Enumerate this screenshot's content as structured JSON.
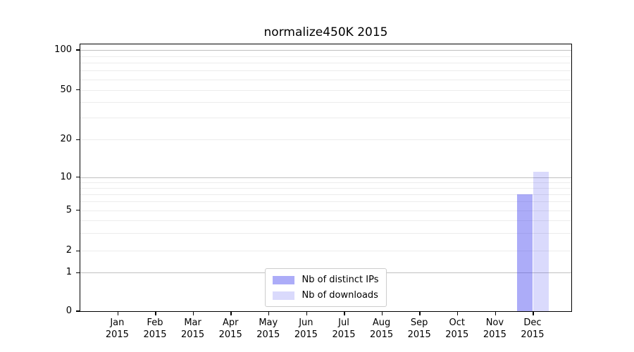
{
  "figure": {
    "title": "normalize450K 2015"
  },
  "chart_data": {
    "type": "bar",
    "title": "normalize450K 2015",
    "x_categories": [
      {
        "label": "Jan",
        "year": "2015"
      },
      {
        "label": "Feb",
        "year": "2015"
      },
      {
        "label": "Mar",
        "year": "2015"
      },
      {
        "label": "Apr",
        "year": "2015"
      },
      {
        "label": "May",
        "year": "2015"
      },
      {
        "label": "Jun",
        "year": "2015"
      },
      {
        "label": "Jul",
        "year": "2015"
      },
      {
        "label": "Aug",
        "year": "2015"
      },
      {
        "label": "Sep",
        "year": "2015"
      },
      {
        "label": "Oct",
        "year": "2015"
      },
      {
        "label": "Nov",
        "year": "2015"
      },
      {
        "label": "Dec",
        "year": "2015"
      }
    ],
    "series": [
      {
        "name": "Nb of distinct IPs",
        "color": "rgba(70,70,240,0.45)",
        "values": [
          0,
          0,
          0,
          0,
          0,
          0,
          0,
          0,
          0,
          0,
          0,
          7
        ]
      },
      {
        "name": "Nb of downloads",
        "color": "rgba(70,70,240,0.20)",
        "values": [
          0,
          0,
          0,
          0,
          0,
          0,
          0,
          0,
          0,
          0,
          0,
          11
        ]
      }
    ],
    "y_axis": {
      "tick_labels": [
        100,
        50,
        20,
        10,
        5,
        2,
        1,
        0
      ],
      "ylim": [
        0,
        110
      ],
      "scale": "log-like with 0 baseline"
    },
    "grid": {
      "major_at": [
        1,
        10,
        100
      ],
      "minor_at": [
        2,
        3,
        4,
        5,
        6,
        7,
        8,
        9,
        20,
        30,
        40,
        50,
        60,
        70,
        80,
        90
      ],
      "major_color": "#c0c0c0",
      "minor_color": "#ececec"
    },
    "legend": {
      "position": "bottom-center"
    }
  }
}
